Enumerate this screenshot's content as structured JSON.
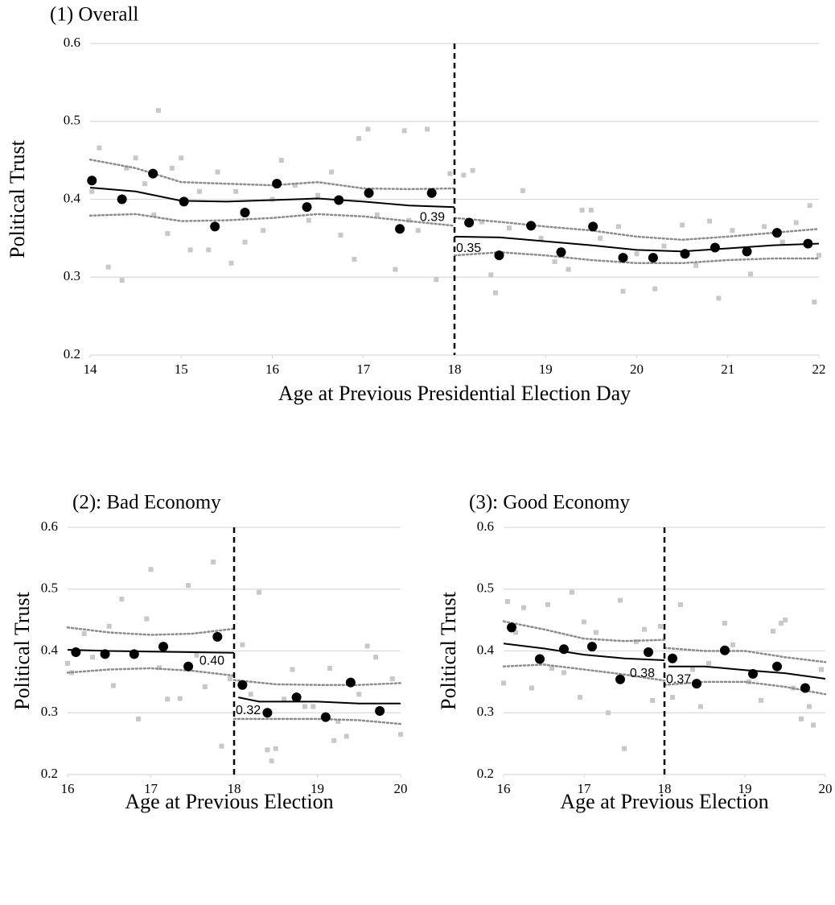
{
  "chart_data": [
    {
      "type": "scatter",
      "title": "(1) Overall",
      "xlabel": "Age at Previous Presidential Election Day",
      "ylabel": "Political Trust",
      "xlim": [
        14,
        22
      ],
      "xticks": [
        14,
        15,
        16,
        17,
        18,
        19,
        20,
        21,
        22
      ],
      "ylim": [
        0.2,
        0.6
      ],
      "yticks": [
        0.2,
        0.3,
        0.4,
        0.5,
        0.6
      ],
      "grid": true,
      "cutoff": 18,
      "cutoff_labels": [
        {
          "value": 0.39,
          "label": "0.39"
        },
        {
          "value": 0.35,
          "label": "0.35"
        }
      ],
      "series": [
        {
          "type": "scatter",
          "marker": "square",
          "color": "#c8c8c8",
          "x": [
            14.02,
            14.1,
            14.2,
            14.35,
            14.4,
            14.5,
            14.6,
            14.7,
            14.75,
            14.85,
            14.9,
            15.0,
            15.1,
            15.2,
            15.3,
            15.4,
            15.55,
            15.6,
            15.7,
            15.9,
            16.0,
            16.1,
            16.25,
            16.4,
            16.5,
            16.65,
            16.75,
            16.9,
            16.95,
            17.05,
            17.15,
            17.35,
            17.45,
            17.5,
            17.6,
            17.7,
            17.8,
            17.95,
            18.1,
            18.2,
            18.3,
            18.4,
            18.45,
            18.6,
            18.75,
            18.95,
            19.1,
            19.25,
            19.4,
            19.5,
            19.6,
            19.8,
            19.85,
            20.0,
            20.2,
            20.3,
            20.5,
            20.65,
            20.8,
            20.9,
            21.05,
            21.25,
            21.4,
            21.6,
            21.75,
            21.9,
            21.95,
            22.0
          ],
          "values": [
            0.41,
            0.466,
            0.313,
            0.296,
            0.44,
            0.453,
            0.42,
            0.38,
            0.514,
            0.356,
            0.44,
            0.453,
            0.335,
            0.41,
            0.335,
            0.435,
            0.318,
            0.41,
            0.345,
            0.36,
            0.4,
            0.45,
            0.418,
            0.373,
            0.405,
            0.435,
            0.354,
            0.323,
            0.478,
            0.49,
            0.38,
            0.31,
            0.488,
            0.373,
            0.36,
            0.49,
            0.297,
            0.433,
            0.431,
            0.437,
            0.371,
            0.303,
            0.28,
            0.363,
            0.411,
            0.35,
            0.32,
            0.31,
            0.386,
            0.386,
            0.35,
            0.365,
            0.282,
            0.33,
            0.285,
            0.34,
            0.367,
            0.315,
            0.372,
            0.273,
            0.36,
            0.304,
            0.365,
            0.345,
            0.37,
            0.392,
            0.268,
            0.328
          ]
        },
        {
          "type": "line",
          "style": "dotted",
          "color": "#8c8c8c",
          "x": [
            14,
            14.5,
            15,
            15.5,
            16,
            16.5,
            17,
            17.5,
            18
          ],
          "values": [
            0.451,
            0.44,
            0.422,
            0.42,
            0.418,
            0.422,
            0.414,
            0.413,
            0.414
          ]
        },
        {
          "type": "line",
          "style": "dotted",
          "color": "#8c8c8c",
          "x": [
            14,
            14.5,
            15,
            15.5,
            16,
            16.5,
            17,
            17.5,
            18
          ],
          "values": [
            0.379,
            0.381,
            0.372,
            0.373,
            0.376,
            0.381,
            0.378,
            0.372,
            0.366
          ]
        },
        {
          "type": "line",
          "style": "dotted",
          "color": "#8c8c8c",
          "x": [
            18,
            18.5,
            19,
            19.5,
            20,
            20.5,
            21,
            21.5,
            22
          ],
          "values": [
            0.376,
            0.371,
            0.365,
            0.36,
            0.352,
            0.348,
            0.352,
            0.357,
            0.362
          ]
        },
        {
          "type": "line",
          "style": "dotted",
          "color": "#8c8c8c",
          "x": [
            18,
            18.5,
            19,
            19.5,
            20,
            20.5,
            21,
            21.5,
            22
          ],
          "values": [
            0.328,
            0.332,
            0.328,
            0.322,
            0.318,
            0.318,
            0.322,
            0.324,
            0.324
          ]
        },
        {
          "type": "line",
          "style": "solid",
          "color": "#000000",
          "x": [
            14,
            14.5,
            15,
            15.5,
            16,
            16.5,
            17,
            17.5,
            18
          ],
          "values": [
            0.415,
            0.41,
            0.398,
            0.397,
            0.399,
            0.401,
            0.397,
            0.392,
            0.39
          ]
        },
        {
          "type": "line",
          "style": "solid",
          "color": "#000000",
          "x": [
            18,
            18.5,
            19,
            19.5,
            20,
            20.5,
            21,
            21.5,
            22
          ],
          "values": [
            0.352,
            0.351,
            0.346,
            0.341,
            0.335,
            0.333,
            0.337,
            0.341,
            0.343
          ]
        },
        {
          "type": "scatter",
          "marker": "circle",
          "color": "#000000",
          "x": [
            14.02,
            14.35,
            14.69,
            15.03,
            15.37,
            15.7,
            16.05,
            16.38,
            16.73,
            17.06,
            17.4,
            17.75,
            18.16,
            18.49,
            18.84,
            19.17,
            19.52,
            19.85,
            20.18,
            20.53,
            20.86,
            21.21,
            21.54,
            21.88
          ],
          "values": [
            0.424,
            0.4,
            0.433,
            0.397,
            0.365,
            0.383,
            0.42,
            0.39,
            0.399,
            0.408,
            0.362,
            0.408,
            0.37,
            0.328,
            0.366,
            0.332,
            0.365,
            0.325,
            0.325,
            0.33,
            0.338,
            0.333,
            0.357,
            0.343
          ]
        }
      ]
    },
    {
      "type": "scatter",
      "title": "(2): Bad Economy",
      "xlabel": "Age at Previous Election",
      "ylabel": "Political Trust",
      "xlim": [
        16,
        20
      ],
      "xticks": [
        16,
        17,
        18,
        19,
        20
      ],
      "ylim": [
        0.2,
        0.6
      ],
      "yticks": [
        0.2,
        0.3,
        0.4,
        0.5,
        0.6
      ],
      "grid": true,
      "cutoff": 18,
      "cutoff_labels": [
        {
          "value": 0.4,
          "label": "0.40"
        },
        {
          "value": 0.32,
          "label": "0.32"
        }
      ],
      "series": [
        {
          "type": "scatter",
          "marker": "square",
          "color": "#c8c8c8",
          "x": [
            16.0,
            16.05,
            16.2,
            16.3,
            16.5,
            16.55,
            16.65,
            16.85,
            16.95,
            17.0,
            17.1,
            17.2,
            17.35,
            17.45,
            17.55,
            17.65,
            17.75,
            17.85,
            17.95,
            18.1,
            18.2,
            18.3,
            18.4,
            18.45,
            18.5,
            18.6,
            18.7,
            18.85,
            18.95,
            19.15,
            19.2,
            19.25,
            19.35,
            19.5,
            19.6,
            19.7,
            19.9,
            20.0
          ],
          "values": [
            0.38,
            0.365,
            0.428,
            0.39,
            0.44,
            0.344,
            0.484,
            0.29,
            0.452,
            0.532,
            0.373,
            0.322,
            0.323,
            0.506,
            0.393,
            0.342,
            0.544,
            0.246,
            0.355,
            0.41,
            0.33,
            0.495,
            0.24,
            0.222,
            0.242,
            0.322,
            0.37,
            0.31,
            0.31,
            0.372,
            0.255,
            0.286,
            0.262,
            0.33,
            0.408,
            0.39,
            0.355,
            0.265
          ]
        },
        {
          "type": "line",
          "style": "dotted",
          "color": "#8c8c8c",
          "x": [
            16,
            16.5,
            17,
            17.5,
            18
          ],
          "values": [
            0.438,
            0.43,
            0.426,
            0.428,
            0.436
          ]
        },
        {
          "type": "line",
          "style": "dotted",
          "color": "#8c8c8c",
          "x": [
            16,
            16.5,
            17,
            17.5,
            18
          ],
          "values": [
            0.365,
            0.37,
            0.372,
            0.368,
            0.36
          ]
        },
        {
          "type": "line",
          "style": "dotted",
          "color": "#8c8c8c",
          "x": [
            18,
            18.5,
            19,
            19.5,
            20
          ],
          "values": [
            0.353,
            0.346,
            0.345,
            0.345,
            0.348
          ]
        },
        {
          "type": "line",
          "style": "dotted",
          "color": "#8c8c8c",
          "x": [
            18,
            18.5,
            19,
            19.5,
            20
          ],
          "values": [
            0.29,
            0.29,
            0.29,
            0.288,
            0.282
          ]
        },
        {
          "type": "line",
          "style": "solid",
          "color": "#000000",
          "x": [
            16,
            16.5,
            17,
            17.5,
            18
          ],
          "values": [
            0.402,
            0.4,
            0.399,
            0.398,
            0.397
          ]
        },
        {
          "type": "line",
          "style": "solid",
          "color": "#000000",
          "x": [
            18.05,
            18.3,
            19,
            19.5,
            20
          ],
          "values": [
            0.325,
            0.318,
            0.318,
            0.315,
            0.315
          ]
        },
        {
          "type": "scatter",
          "marker": "circle",
          "color": "#000000",
          "x": [
            16.1,
            16.45,
            16.8,
            17.15,
            17.45,
            17.8,
            18.1,
            18.4,
            18.75,
            19.1,
            19.4,
            19.75
          ],
          "values": [
            0.398,
            0.395,
            0.395,
            0.407,
            0.375,
            0.423,
            0.345,
            0.3,
            0.325,
            0.293,
            0.349,
            0.303
          ]
        }
      ]
    },
    {
      "type": "scatter",
      "title": "(3): Good Economy",
      "xlabel": "Age at Previous Election",
      "ylabel": "Political Trust",
      "xlim": [
        16,
        20
      ],
      "xticks": [
        16,
        17,
        18,
        19,
        20
      ],
      "ylim": [
        0.2,
        0.6
      ],
      "yticks": [
        0.2,
        0.3,
        0.4,
        0.5,
        0.6
      ],
      "grid": true,
      "cutoff": 18,
      "cutoff_labels": [
        {
          "value": 0.38,
          "label": "0.38"
        },
        {
          "value": 0.37,
          "label": "0.37"
        }
      ],
      "series": [
        {
          "type": "scatter",
          "marker": "square",
          "color": "#c8c8c8",
          "x": [
            16.0,
            16.05,
            16.15,
            16.25,
            16.35,
            16.55,
            16.6,
            16.75,
            16.85,
            16.95,
            17.0,
            17.15,
            17.3,
            17.45,
            17.5,
            17.65,
            17.75,
            17.85,
            17.95,
            18.1,
            18.2,
            18.35,
            18.45,
            18.55,
            18.75,
            18.85,
            19.05,
            19.2,
            19.35,
            19.45,
            19.5,
            19.6,
            19.7,
            19.8,
            19.85,
            19.95
          ],
          "values": [
            0.348,
            0.48,
            0.43,
            0.47,
            0.34,
            0.475,
            0.372,
            0.365,
            0.495,
            0.325,
            0.447,
            0.43,
            0.3,
            0.482,
            0.242,
            0.415,
            0.435,
            0.32,
            0.44,
            0.325,
            0.475,
            0.37,
            0.31,
            0.38,
            0.445,
            0.41,
            0.35,
            0.32,
            0.432,
            0.445,
            0.45,
            0.34,
            0.29,
            0.31,
            0.28,
            0.37
          ]
        },
        {
          "type": "line",
          "style": "dotted",
          "color": "#8c8c8c",
          "x": [
            16,
            16.5,
            17,
            17.5,
            18
          ],
          "values": [
            0.448,
            0.435,
            0.42,
            0.416,
            0.418
          ]
        },
        {
          "type": "line",
          "style": "dotted",
          "color": "#8c8c8c",
          "x": [
            16,
            16.5,
            17,
            17.5,
            18
          ],
          "values": [
            0.375,
            0.378,
            0.37,
            0.362,
            0.352
          ]
        },
        {
          "type": "line",
          "style": "dotted",
          "color": "#8c8c8c",
          "x": [
            18,
            18.5,
            19,
            19.5,
            20
          ],
          "values": [
            0.405,
            0.4,
            0.4,
            0.39,
            0.382
          ]
        },
        {
          "type": "line",
          "style": "dotted",
          "color": "#8c8c8c",
          "x": [
            18,
            18.5,
            19,
            19.5,
            20
          ],
          "values": [
            0.345,
            0.35,
            0.35,
            0.342,
            0.33
          ]
        },
        {
          "type": "line",
          "style": "solid",
          "color": "#000000",
          "x": [
            16,
            16.5,
            17,
            17.5,
            18
          ],
          "values": [
            0.412,
            0.404,
            0.394,
            0.388,
            0.385
          ]
        },
        {
          "type": "line",
          "style": "solid",
          "color": "#000000",
          "x": [
            18.05,
            18.5,
            19,
            19.5,
            20
          ],
          "values": [
            0.375,
            0.375,
            0.369,
            0.364,
            0.355
          ]
        },
        {
          "type": "scatter",
          "marker": "circle",
          "color": "#000000",
          "x": [
            16.1,
            16.45,
            16.75,
            17.1,
            17.45,
            17.8,
            18.1,
            18.4,
            18.75,
            19.1,
            19.4,
            19.75
          ],
          "values": [
            0.438,
            0.387,
            0.403,
            0.407,
            0.354,
            0.398,
            0.388,
            0.347,
            0.401,
            0.363,
            0.375,
            0.34
          ]
        }
      ]
    }
  ]
}
